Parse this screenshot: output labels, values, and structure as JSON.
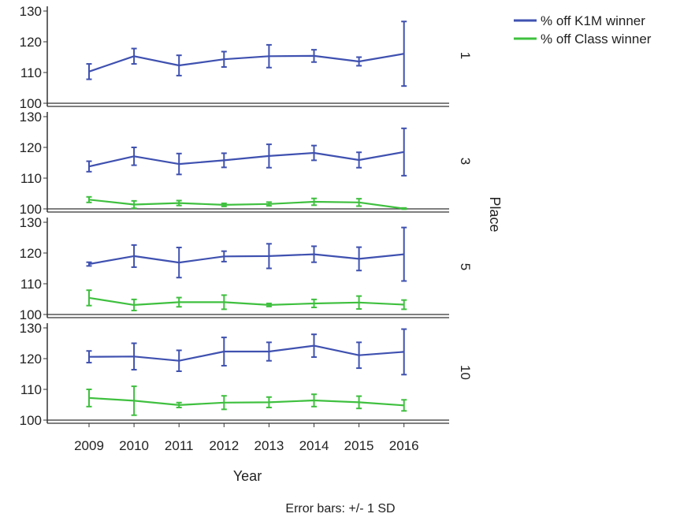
{
  "chart_data": {
    "type": "line",
    "xlabel": "Year",
    "panel_axis_label": "Place",
    "footnote": "Error bars: +/- 1 SD",
    "categories": [
      "2009",
      "2010",
      "2011",
      "2012",
      "2013",
      "2014",
      "2015",
      "2016"
    ],
    "ylim": [
      100,
      130
    ],
    "yticks": [
      "100",
      "110",
      "120",
      "130"
    ],
    "legend": {
      "placement": "top-right",
      "entries": [
        "% off K1M winner",
        "% off Class winner"
      ]
    },
    "colors": {
      "k1m": "#3f51b0",
      "class": "#3fc03f"
    },
    "panels": [
      {
        "label": "1",
        "series": [
          {
            "name": "% off K1M winner",
            "color_key": "k1m",
            "values": [
              110.3,
              115.3,
              112.3,
              114.3,
              115.3,
              115.4,
              113.6,
              116.1
            ],
            "sd": [
              2.5,
              2.5,
              3.3,
              2.5,
              3.7,
              2.0,
              1.4,
              10.5
            ]
          }
        ]
      },
      {
        "label": "3",
        "series": [
          {
            "name": "% off K1M winner",
            "color_key": "k1m",
            "values": [
              113.8,
              117.1,
              114.6,
              115.8,
              117.2,
              118.2,
              115.9,
              118.5
            ],
            "sd": [
              1.7,
              2.9,
              3.4,
              2.3,
              3.8,
              2.4,
              2.5,
              7.7
            ]
          },
          {
            "name": "% off Class winner",
            "color_key": "class",
            "values": [
              103.0,
              101.4,
              101.9,
              101.3,
              101.6,
              102.3,
              102.1,
              100.1
            ],
            "sd": [
              0.9,
              1.2,
              0.8,
              0.5,
              0.6,
              1.1,
              1.2,
              0.2
            ]
          }
        ]
      },
      {
        "label": "5",
        "series": [
          {
            "name": "% off K1M winner",
            "color_key": "k1m",
            "values": [
              116.4,
              119.0,
              116.9,
              118.9,
              119.0,
              119.6,
              118.1,
              119.6
            ],
            "sd": [
              0.6,
              3.6,
              4.9,
              1.7,
              4.0,
              2.6,
              3.8,
              8.7
            ]
          },
          {
            "name": "% off Class winner",
            "color_key": "class",
            "values": [
              105.4,
              103.1,
              104.0,
              104.0,
              103.1,
              103.6,
              103.9,
              103.2
            ],
            "sd": [
              2.5,
              1.8,
              1.5,
              2.3,
              0.5,
              1.3,
              2.1,
              1.5
            ]
          }
        ]
      },
      {
        "label": "10",
        "series": [
          {
            "name": "% off K1M winner",
            "color_key": "k1m",
            "values": [
              120.6,
              120.7,
              119.3,
              122.3,
              122.3,
              124.2,
              121.1,
              122.2
            ],
            "sd": [
              1.9,
              4.3,
              3.4,
              4.6,
              3.0,
              3.7,
              4.2,
              7.4
            ]
          },
          {
            "name": "% off Class winner",
            "color_key": "class",
            "values": [
              107.2,
              106.3,
              104.9,
              105.7,
              105.8,
              106.4,
              105.8,
              104.8
            ],
            "sd": [
              2.8,
              4.7,
              0.8,
              2.2,
              1.7,
              2.0,
              2.0,
              1.8
            ]
          }
        ]
      }
    ]
  }
}
